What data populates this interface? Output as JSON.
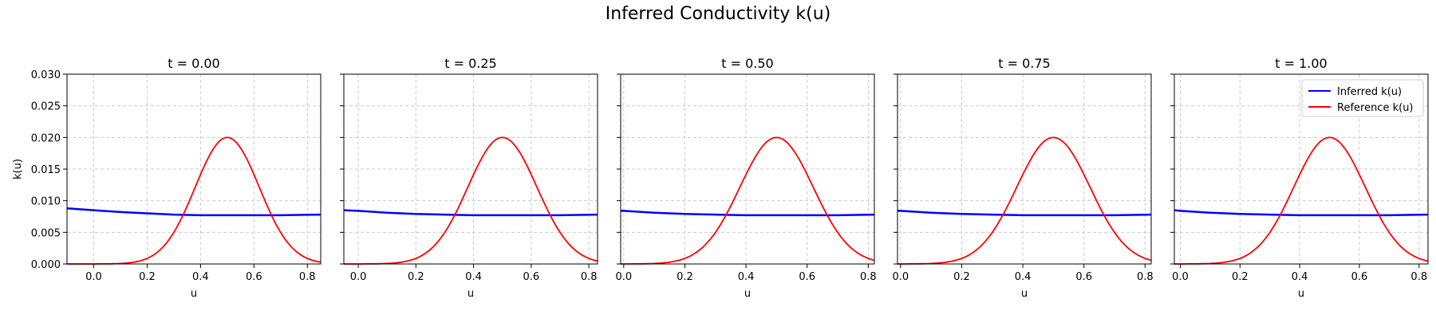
{
  "figure": {
    "title": "Inferred Conductivity k(u)"
  },
  "chart_data": [
    {
      "type": "line",
      "title": "t = 0.00",
      "xlabel": "u",
      "ylabel": "k(u)",
      "xlim": [
        -0.1,
        0.85
      ],
      "ylim": [
        0,
        0.03
      ],
      "grid": true,
      "xticks": [
        "0.0",
        "0.2",
        "0.4",
        "0.6",
        "0.8"
      ],
      "yticks": [
        "0.000",
        "0.005",
        "0.010",
        "0.015",
        "0.020",
        "0.025",
        "0.030"
      ],
      "series": [
        {
          "name": "Inferred k(u)",
          "color": "#0000ff",
          "x": [
            -0.1,
            0.0,
            0.1,
            0.2,
            0.3,
            0.4,
            0.5,
            0.6,
            0.7,
            0.85
          ],
          "y": [
            0.0088,
            0.0085,
            0.0082,
            0.008,
            0.0078,
            0.0077,
            0.0077,
            0.0077,
            0.0077,
            0.0078
          ]
        },
        {
          "name": "Reference k(u)",
          "color": "#ff0000",
          "x": [
            -0.1,
            0.0,
            0.1,
            0.2,
            0.3,
            0.4,
            0.5,
            0.6,
            0.7,
            0.8,
            0.85
          ],
          "y": [
            0.0001,
            0.0003,
            0.0012,
            0.0036,
            0.0085,
            0.0152,
            0.02,
            0.0152,
            0.0085,
            0.0036,
            0.0019
          ]
        }
      ]
    },
    {
      "type": "line",
      "title": "t = 0.25",
      "xlabel": "u",
      "xlim": [
        -0.05,
        0.83
      ],
      "ylim": [
        0,
        0.03
      ],
      "grid": true,
      "xticks": [
        "0.0",
        "0.2",
        "0.4",
        "0.6",
        "0.8"
      ],
      "series": [
        {
          "name": "Inferred k(u)",
          "color": "#0000ff",
          "x": [
            -0.05,
            0.0,
            0.1,
            0.2,
            0.3,
            0.4,
            0.5,
            0.6,
            0.7,
            0.83
          ],
          "y": [
            0.0085,
            0.0084,
            0.0081,
            0.0079,
            0.0078,
            0.0077,
            0.0077,
            0.0077,
            0.0077,
            0.0078
          ]
        },
        {
          "name": "Reference k(u)",
          "color": "#ff0000",
          "x": [
            -0.05,
            0.0,
            0.1,
            0.2,
            0.3,
            0.4,
            0.5,
            0.6,
            0.7,
            0.8,
            0.83
          ],
          "y": [
            0.0001,
            0.0003,
            0.0012,
            0.0036,
            0.0085,
            0.0152,
            0.02,
            0.0152,
            0.0085,
            0.0036,
            0.0023
          ]
        }
      ]
    },
    {
      "type": "line",
      "title": "t = 0.50",
      "xlabel": "u",
      "xlim": [
        -0.01,
        0.82
      ],
      "ylim": [
        0,
        0.03
      ],
      "grid": true,
      "xticks": [
        "0.0",
        "0.2",
        "0.4",
        "0.6",
        "0.8"
      ],
      "series": [
        {
          "name": "Inferred k(u)",
          "color": "#0000ff",
          "x": [
            -0.01,
            0.0,
            0.1,
            0.2,
            0.3,
            0.4,
            0.5,
            0.6,
            0.7,
            0.82
          ],
          "y": [
            0.0084,
            0.0084,
            0.0081,
            0.0079,
            0.0078,
            0.0077,
            0.0077,
            0.0077,
            0.0077,
            0.0078
          ]
        },
        {
          "name": "Reference k(u)",
          "color": "#ff0000",
          "x": [
            -0.01,
            0.0,
            0.1,
            0.2,
            0.3,
            0.4,
            0.5,
            0.6,
            0.7,
            0.8,
            0.82
          ],
          "y": [
            0.0003,
            0.0003,
            0.0012,
            0.0036,
            0.0085,
            0.0152,
            0.02,
            0.0152,
            0.0085,
            0.0036,
            0.0027
          ]
        }
      ]
    },
    {
      "type": "line",
      "title": "t = 0.75",
      "xlabel": "u",
      "xlim": [
        -0.01,
        0.82
      ],
      "ylim": [
        0,
        0.03
      ],
      "grid": true,
      "xticks": [
        "0.0",
        "0.2",
        "0.4",
        "0.6",
        "0.8"
      ],
      "series": [
        {
          "name": "Inferred k(u)",
          "color": "#0000ff",
          "x": [
            -0.01,
            0.0,
            0.1,
            0.2,
            0.3,
            0.4,
            0.5,
            0.6,
            0.7,
            0.82
          ],
          "y": [
            0.0084,
            0.0084,
            0.0081,
            0.0079,
            0.0078,
            0.0077,
            0.0077,
            0.0077,
            0.0077,
            0.0078
          ]
        },
        {
          "name": "Reference k(u)",
          "color": "#ff0000",
          "x": [
            -0.01,
            0.0,
            0.1,
            0.2,
            0.3,
            0.4,
            0.5,
            0.6,
            0.7,
            0.8,
            0.82
          ],
          "y": [
            0.0003,
            0.0003,
            0.0012,
            0.0036,
            0.0085,
            0.0152,
            0.02,
            0.0152,
            0.0085,
            0.0036,
            0.0027
          ]
        }
      ]
    },
    {
      "type": "line",
      "title": "t = 1.00",
      "xlabel": "u",
      "xlim": [
        -0.02,
        0.83
      ],
      "ylim": [
        0,
        0.03
      ],
      "grid": true,
      "xticks": [
        "0.0",
        "0.2",
        "0.4",
        "0.6",
        "0.8"
      ],
      "legend": {
        "loc": "top-right",
        "entries": [
          "Inferred k(u)",
          "Reference k(u)"
        ]
      },
      "series": [
        {
          "name": "Inferred k(u)",
          "color": "#0000ff",
          "x": [
            -0.02,
            0.0,
            0.1,
            0.2,
            0.3,
            0.4,
            0.5,
            0.6,
            0.7,
            0.83
          ],
          "y": [
            0.0085,
            0.0084,
            0.0081,
            0.0079,
            0.0078,
            0.0077,
            0.0077,
            0.0077,
            0.0077,
            0.0078
          ]
        },
        {
          "name": "Reference k(u)",
          "color": "#ff0000",
          "x": [
            -0.02,
            0.0,
            0.1,
            0.2,
            0.3,
            0.4,
            0.5,
            0.6,
            0.7,
            0.8,
            0.83
          ],
          "y": [
            0.0002,
            0.0003,
            0.0012,
            0.0036,
            0.0085,
            0.0152,
            0.02,
            0.0152,
            0.0085,
            0.0036,
            0.0023
          ]
        }
      ]
    }
  ]
}
